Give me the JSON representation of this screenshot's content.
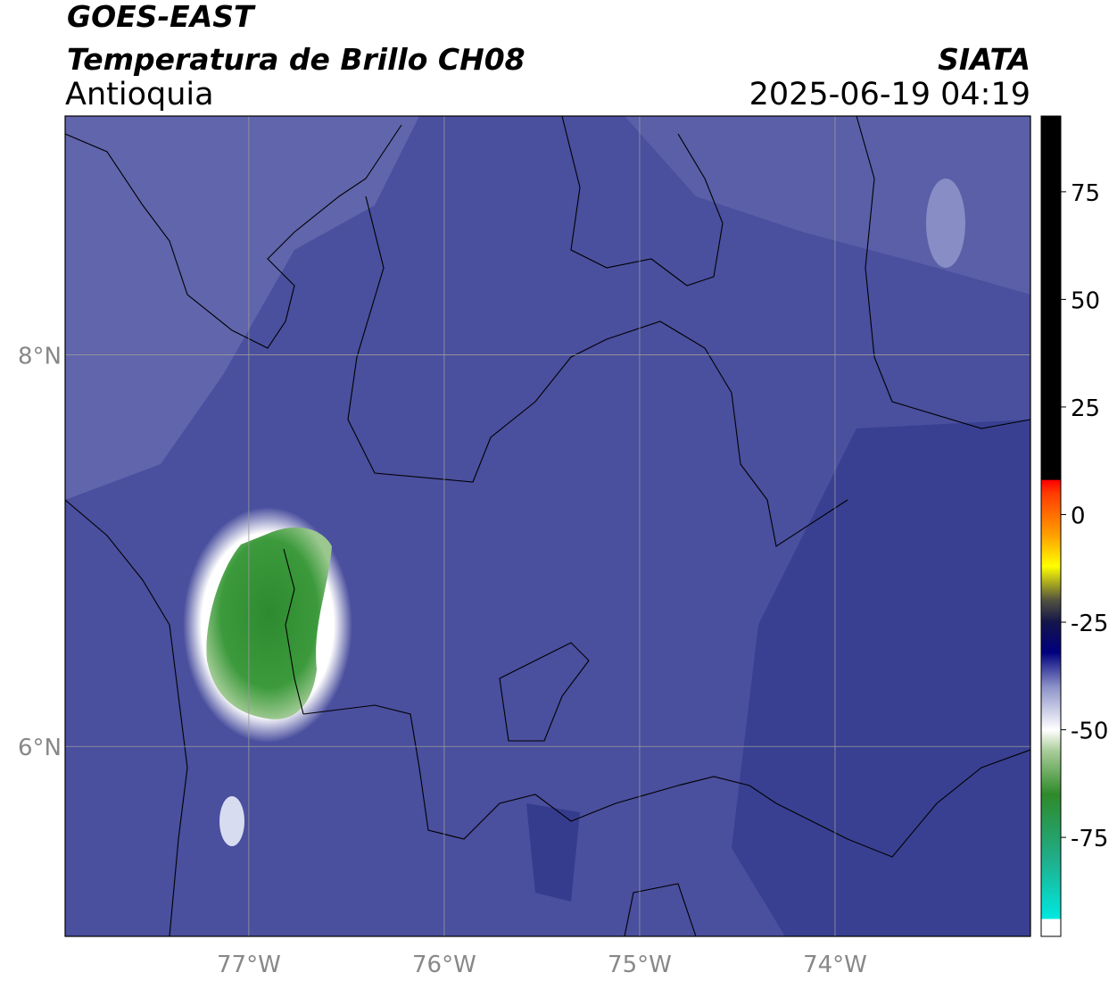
{
  "header": {
    "title": "GOES-EAST",
    "subtitle": "Temperatura de Brillo CH08",
    "region": "Antioquia",
    "source": "SIATA",
    "datetime": "2025-06-19 04:19"
  },
  "map": {
    "xlim": [
      -77.94,
      -73.0
    ],
    "ylim": [
      5.03,
      9.22
    ],
    "xticks": [
      {
        "value": -77,
        "label": "77°W"
      },
      {
        "value": -76,
        "label": "76°W"
      },
      {
        "value": -75,
        "label": "75°W"
      },
      {
        "value": -74,
        "label": "74°W"
      }
    ],
    "yticks": [
      {
        "value": 6,
        "label": "6°N"
      },
      {
        "value": 8,
        "label": "8°N"
      }
    ],
    "grid": true,
    "grid_color": "#9a9a9a"
  },
  "colorbar": {
    "lim": [
      -98,
      92.6
    ],
    "ticks": [
      -75,
      -50,
      -25,
      0,
      25,
      50,
      75
    ],
    "stops": [
      {
        "value": -98,
        "color": "#ffffff"
      },
      {
        "value": -94,
        "color": "#ffffff"
      },
      {
        "value": -93.9,
        "color": "#00e8e0"
      },
      {
        "value": -80,
        "color": "#1fae8a"
      },
      {
        "value": -65,
        "color": "#2f8a2a"
      },
      {
        "value": -55,
        "color": "#a8cc98"
      },
      {
        "value": -50,
        "color": "#ffffff"
      },
      {
        "value": -40,
        "color": "#8c92c8"
      },
      {
        "value": -32,
        "color": "#00007e"
      },
      {
        "value": -25,
        "color": "#14144a"
      },
      {
        "value": -20,
        "color": "#505040"
      },
      {
        "value": -12,
        "color": "#ffff00"
      },
      {
        "value": -5,
        "color": "#ffa200"
      },
      {
        "value": 5,
        "color": "#ff3a00"
      },
      {
        "value": 8,
        "color": "#ff0000"
      },
      {
        "value": 8.1,
        "color": "#000000"
      },
      {
        "value": 92.6,
        "color": "#000000"
      }
    ]
  }
}
